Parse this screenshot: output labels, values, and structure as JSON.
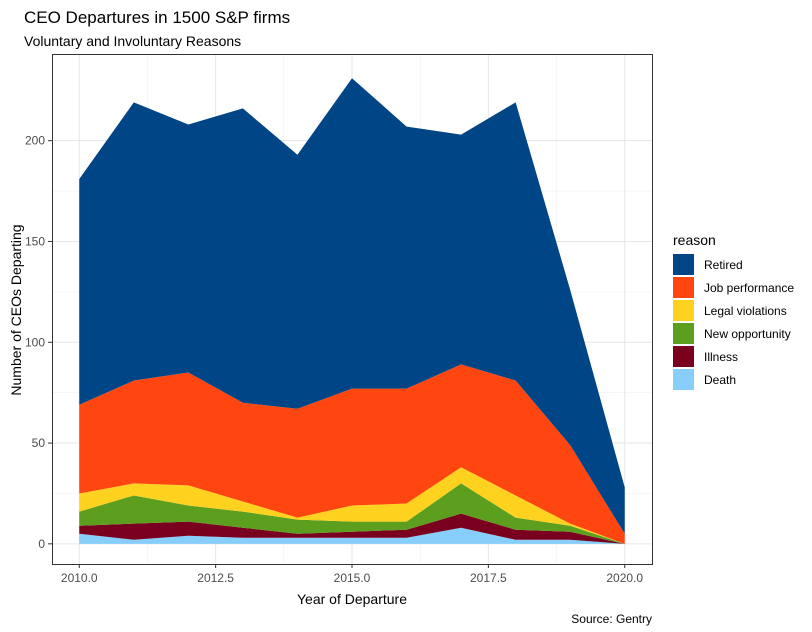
{
  "chart_data": {
    "type": "area",
    "stacked": true,
    "title": "CEO Departures in 1500 S&P firms",
    "subtitle": "Voluntary and Involuntary Reasons",
    "xlabel": "Year of Departure",
    "ylabel": "Number of CEOs Departing",
    "caption": "Source: Gentry",
    "legend_title": "reason",
    "legend_position": "right",
    "grid": true,
    "xlim": [
      2009.5,
      2020.5
    ],
    "ylim": [
      -10,
      243
    ],
    "x_ticks": [
      2010,
      2012.5,
      2015,
      2017.5,
      2020
    ],
    "x_tick_labels": [
      "2010.0",
      "2012.5",
      "2015.0",
      "2017.5",
      "2020.0"
    ],
    "y_ticks": [
      0,
      50,
      100,
      150,
      200
    ],
    "y_tick_labels": [
      "0",
      "50",
      "100",
      "150",
      "200"
    ],
    "x": [
      2010,
      2011,
      2012,
      2013,
      2014,
      2015,
      2016,
      2017,
      2018,
      2019,
      2020
    ],
    "series": [
      {
        "name": "Death",
        "color": "#87CEFA",
        "values": [
          5,
          2,
          4,
          3,
          3,
          3,
          3,
          8,
          2,
          2,
          0
        ]
      },
      {
        "name": "Illness",
        "color": "#7A0020",
        "values": [
          4,
          8,
          7,
          5,
          2,
          3,
          4,
          7,
          5,
          4,
          0
        ]
      },
      {
        "name": "New opportunity",
        "color": "#5C9E1E",
        "values": [
          7,
          14,
          8,
          8,
          7,
          5,
          4,
          15,
          6,
          3,
          0
        ]
      },
      {
        "name": "Legal violations",
        "color": "#FFD21F",
        "values": [
          9,
          6,
          10,
          5,
          1,
          8,
          9,
          8,
          11,
          1,
          0
        ]
      },
      {
        "name": "Job performance",
        "color": "#FF4510",
        "values": [
          44,
          51,
          56,
          49,
          54,
          58,
          57,
          51,
          57,
          39,
          5
        ]
      },
      {
        "name": "Retired",
        "color": "#004586",
        "values": [
          112,
          138,
          123,
          146,
          126,
          154,
          130,
          114,
          138,
          77,
          23
        ]
      }
    ],
    "legend_order": [
      "Retired",
      "Job performance",
      "Legal violations",
      "New opportunity",
      "Illness",
      "Death"
    ]
  }
}
